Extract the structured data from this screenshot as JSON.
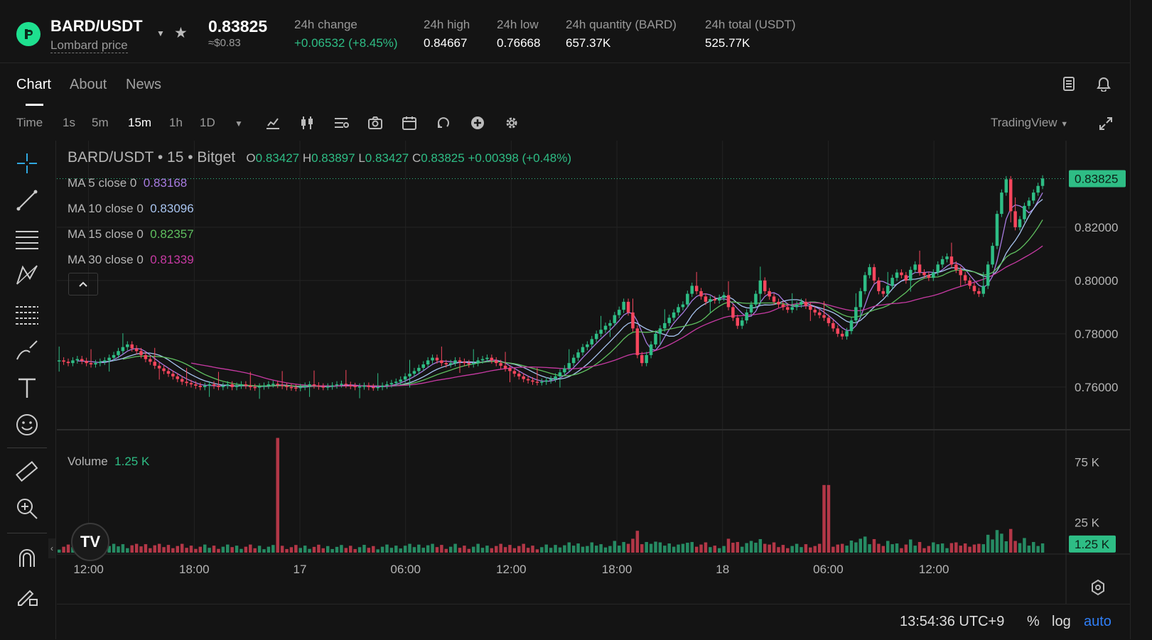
{
  "header": {
    "pair": "BARD/USDT",
    "subtitle": "Lombard price",
    "price": "0.83825",
    "price_usd": "≈$0.83",
    "stats": [
      {
        "label": "24h change",
        "value": "+0.06532 (+8.45%)",
        "positive": true
      },
      {
        "label": "24h high",
        "value": "0.84667"
      },
      {
        "label": "24h low",
        "value": "0.76668"
      },
      {
        "label": "24h quantity (BARD)",
        "value": "657.37K"
      },
      {
        "label": "24h total (USDT)",
        "value": "525.77K"
      }
    ]
  },
  "tabs": [
    "Chart",
    "About",
    "News"
  ],
  "toolbar": {
    "time_label": "Time",
    "intervals": [
      "1s",
      "5m",
      "15m",
      "1h",
      "1D"
    ],
    "selected_interval": "15m",
    "chart_provider": "TradingView"
  },
  "legend": {
    "symbol": "BARD/USDT",
    "sep1": "•",
    "interval": "15",
    "sep2": "•",
    "exchange": "Bitget",
    "o_label": "O",
    "open": "0.83427",
    "h_label": "H",
    "high": "0.83897",
    "l_label": "L",
    "low": "0.83427",
    "c_label": "C",
    "close": "0.83825",
    "change": "+0.00398 (+0.48%)",
    "ma": [
      {
        "label": "MA 5 close 0",
        "value": "0.83168",
        "color": "#a77be0"
      },
      {
        "label": "MA 10 close 0",
        "value": "0.83096",
        "color": "#a8c4f0"
      },
      {
        "label": "MA 15 close 0",
        "value": "0.82357",
        "color": "#5fbf5f"
      },
      {
        "label": "MA 30 close 0",
        "value": "0.81339",
        "color": "#c73aa3"
      }
    ],
    "volume_label": "Volume",
    "volume_value": "1.25 K"
  },
  "chart_data": {
    "type": "candlestick",
    "price_ticks": [
      "0.82000",
      "0.80000",
      "0.78000",
      "0.76000"
    ],
    "price_tick_values": [
      0.82,
      0.8,
      0.78,
      0.76
    ],
    "price_range": [
      0.7445,
      0.8525
    ],
    "last_price_label": "0.83825",
    "last_price": 0.83825,
    "volume_ticks": [
      "75 K",
      "25 K"
    ],
    "volume_tick_values": [
      75000,
      25000
    ],
    "volume_range": [
      0,
      100000
    ],
    "last_volume_label": "1.25 K",
    "time_labels": [
      "12:00",
      "18:00",
      "17",
      "06:00",
      "12:00",
      "18:00",
      "18",
      "06:00",
      "12:00"
    ],
    "time_label_hours": [
      0,
      6,
      12,
      18,
      24,
      30,
      36,
      42,
      48
    ],
    "hours_span": [
      -1.8,
      55.5
    ],
    "closes": [
      0.77,
      0.7695,
      0.769,
      0.77,
      0.7705,
      0.7698,
      0.769,
      0.7685,
      0.769,
      0.7695,
      0.77,
      0.771,
      0.772,
      0.7735,
      0.775,
      0.776,
      0.7745,
      0.7735,
      0.772,
      0.7705,
      0.7695,
      0.768,
      0.767,
      0.766,
      0.765,
      0.764,
      0.763,
      0.762,
      0.7615,
      0.761,
      0.7605,
      0.76,
      0.7605,
      0.761,
      0.7605,
      0.76,
      0.7605,
      0.761,
      0.76,
      0.7605,
      0.761,
      0.7605,
      0.76,
      0.7598,
      0.7602,
      0.7605,
      0.761,
      0.7612,
      0.7608,
      0.7604,
      0.76,
      0.7598,
      0.7596,
      0.76,
      0.7605,
      0.761,
      0.7606,
      0.7602,
      0.76,
      0.7602,
      0.7606,
      0.761,
      0.7612,
      0.7608,
      0.7604,
      0.76,
      0.7602,
      0.7605,
      0.76,
      0.7598,
      0.76,
      0.7605,
      0.761,
      0.7615,
      0.762,
      0.7628,
      0.764,
      0.765,
      0.766,
      0.7672,
      0.7685,
      0.77,
      0.771,
      0.77,
      0.769,
      0.7685,
      0.769,
      0.77,
      0.7695,
      0.769,
      0.7685,
      0.769,
      0.77,
      0.7705,
      0.771,
      0.77,
      0.769,
      0.768,
      0.767,
      0.766,
      0.765,
      0.764,
      0.763,
      0.7625,
      0.762,
      0.7618,
      0.762,
      0.7625,
      0.763,
      0.764,
      0.7655,
      0.767,
      0.769,
      0.771,
      0.773,
      0.775,
      0.776,
      0.778,
      0.78,
      0.7815,
      0.783,
      0.784,
      0.787,
      0.789,
      0.792,
      0.788,
      0.782,
      0.772,
      0.769,
      0.772,
      0.776,
      0.78,
      0.782,
      0.784,
      0.786,
      0.788,
      0.79,
      0.791,
      0.795,
      0.798,
      0.796,
      0.794,
      0.792,
      0.793,
      0.7925,
      0.7935,
      0.7945,
      0.79,
      0.786,
      0.783,
      0.785,
      0.788,
      0.791,
      0.795,
      0.8,
      0.796,
      0.794,
      0.792,
      0.791,
      0.79,
      0.789,
      0.79,
      0.791,
      0.792,
      0.7905,
      0.789,
      0.788,
      0.787,
      0.786,
      0.784,
      0.782,
      0.78,
      0.779,
      0.781,
      0.785,
      0.79,
      0.796,
      0.802,
      0.805,
      0.8,
      0.796,
      0.795,
      0.798,
      0.801,
      0.803,
      0.802,
      0.8,
      0.804,
      0.806,
      0.803,
      0.802,
      0.801,
      0.803,
      0.806,
      0.808,
      0.809,
      0.806,
      0.804,
      0.802,
      0.8,
      0.798,
      0.796,
      0.795,
      0.798,
      0.806,
      0.813,
      0.825,
      0.833,
      0.838,
      0.826,
      0.82,
      0.823,
      0.828,
      0.83,
      0.833,
      0.8355,
      0.8383
    ],
    "ma_series": [
      "MA 5",
      "MA 10",
      "MA 15",
      "MA 30"
    ]
  },
  "colors": {
    "up": "#2ebd85",
    "down": "#f6465d"
  }
}
